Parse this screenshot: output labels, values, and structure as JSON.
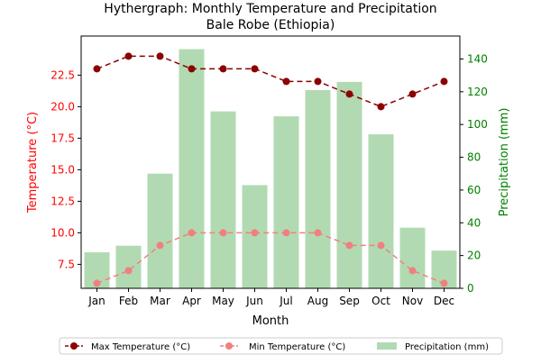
{
  "chart_data": {
    "type": "bar",
    "title_line1": "Hythergraph: Monthly Temperature and Precipitation",
    "title_line2": "Bale Robe (Ethiopia)",
    "xlabel": "Month",
    "ylabel_left": "Temperature (°C)",
    "ylabel_right": "Precipitation (mm)",
    "categories": [
      "Jan",
      "Feb",
      "Mar",
      "Apr",
      "May",
      "Jun",
      "Jul",
      "Aug",
      "Sep",
      "Oct",
      "Nov",
      "Dec"
    ],
    "ylim_left": [
      5.6,
      25.6
    ],
    "ylim_right": [
      0,
      154
    ],
    "yticks_left": [
      "7.5",
      "10.0",
      "12.5",
      "15.0",
      "17.5",
      "20.0",
      "22.5"
    ],
    "yticks_right": [
      "0",
      "20",
      "40",
      "60",
      "80",
      "100",
      "120",
      "140"
    ],
    "series": [
      {
        "name": "Max Temperature (°C)",
        "kind": "line",
        "axis": "left",
        "color": "#8b0000",
        "dash": "6,4",
        "values": [
          23,
          24,
          24,
          23,
          23,
          23,
          22,
          22,
          21,
          20,
          21,
          22
        ]
      },
      {
        "name": "Min Temperature (°C)",
        "kind": "line",
        "axis": "left",
        "color": "#f08080",
        "dash": "6,4",
        "values": [
          6,
          7,
          9,
          10,
          10,
          10,
          10,
          10,
          9,
          9,
          7,
          6
        ]
      },
      {
        "name": "Precipitation (mm)",
        "kind": "bar",
        "axis": "right",
        "color": "#b2dab2",
        "values": [
          22,
          26,
          70,
          146,
          108,
          63,
          105,
          121,
          126,
          94,
          37,
          23
        ]
      }
    ],
    "colors": {
      "left_axis": "#ff0000",
      "right_axis": "#008000"
    },
    "legend_position": "bottom-center",
    "grid": false
  }
}
